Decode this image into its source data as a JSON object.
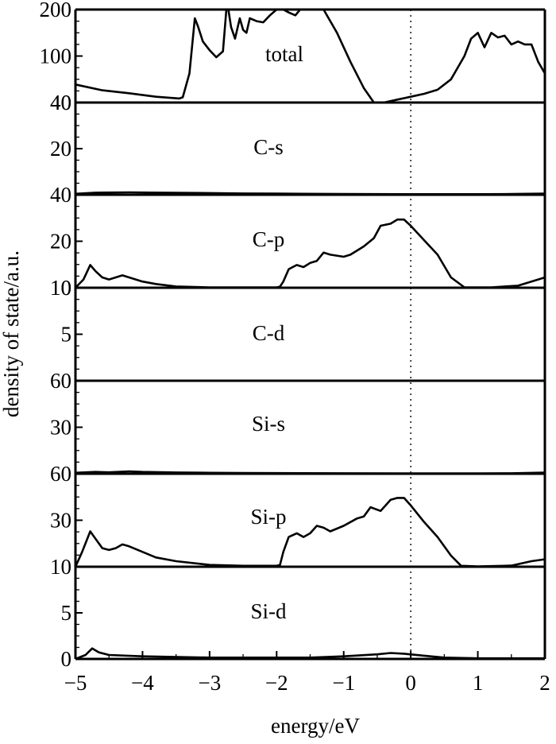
{
  "chart_data": {
    "type": "line",
    "xlabel": "energy/eV",
    "ylabel": "density of state/a.u.",
    "xlim": [
      -5,
      2
    ],
    "x_ticks": [
      "−5",
      "−4",
      "−3",
      "−2",
      "−1",
      "0",
      "1",
      "2"
    ],
    "fermi_level": 0,
    "grid": false,
    "panels": [
      {
        "name": "total",
        "y_ticks": [
          "200",
          "100",
          "40"
        ],
        "points": [
          [
            -5,
            71
          ],
          [
            -4.6,
            61
          ],
          [
            -4.2,
            56
          ],
          [
            -3.8,
            50
          ],
          [
            -3.45,
            47
          ],
          [
            -3.4,
            49
          ],
          [
            -3.3,
            90
          ],
          [
            -3.22,
            185
          ],
          [
            -3.17,
            170
          ],
          [
            -3.1,
            145
          ],
          [
            -3.0,
            130
          ],
          [
            -2.9,
            118
          ],
          [
            -2.8,
            128
          ],
          [
            -2.75,
            200
          ],
          [
            -2.72,
            200
          ],
          [
            -2.68,
            170
          ],
          [
            -2.62,
            150
          ],
          [
            -2.55,
            185
          ],
          [
            -2.5,
            165
          ],
          [
            -2.45,
            160
          ],
          [
            -2.4,
            185
          ],
          [
            -2.3,
            180
          ],
          [
            -2.2,
            178
          ],
          [
            -2.1,
            190
          ],
          [
            -2.0,
            200
          ],
          [
            -1.9,
            200
          ],
          [
            -1.82,
            195
          ],
          [
            -1.72,
            190
          ],
          [
            -1.65,
            200
          ],
          [
            -1.3,
            200
          ],
          [
            -1.1,
            160
          ],
          [
            -0.9,
            110
          ],
          [
            -0.7,
            65
          ],
          [
            -0.55,
            40
          ],
          [
            -0.4,
            40
          ],
          [
            -0.2,
            45
          ],
          [
            0,
            50
          ],
          [
            0.2,
            55
          ],
          [
            0.4,
            62
          ],
          [
            0.6,
            80
          ],
          [
            0.8,
            120
          ],
          [
            0.9,
            150
          ],
          [
            1.0,
            160
          ],
          [
            1.1,
            135
          ],
          [
            1.2,
            160
          ],
          [
            1.3,
            152
          ],
          [
            1.4,
            155
          ],
          [
            1.5,
            140
          ],
          [
            1.6,
            145
          ],
          [
            1.7,
            140
          ],
          [
            1.8,
            140
          ],
          [
            1.9,
            110
          ],
          [
            2.0,
            90
          ]
        ]
      },
      {
        "name": "C-s",
        "y_ticks": [
          "40",
          "20"
        ],
        "points": [
          [
            -5,
            0.5
          ],
          [
            -4.7,
            1.1
          ],
          [
            -4.2,
            1.3
          ],
          [
            -3.7,
            1.1
          ],
          [
            -3.0,
            0.9
          ],
          [
            -2.5,
            0.7
          ],
          [
            -2,
            0.6
          ],
          [
            -1,
            0.4
          ],
          [
            0,
            0.3
          ],
          [
            0.5,
            0.3
          ],
          [
            1,
            0.3
          ],
          [
            1.5,
            0.4
          ],
          [
            2,
            0.6
          ]
        ]
      },
      {
        "name": "C-p",
        "y_ticks": [
          "40",
          "20",
          "10"
        ],
        "points": [
          [
            -5,
            0
          ],
          [
            -4.88,
            4
          ],
          [
            -4.78,
            11
          ],
          [
            -4.7,
            8
          ],
          [
            -4.6,
            5
          ],
          [
            -4.5,
            4
          ],
          [
            -4.4,
            5
          ],
          [
            -4.3,
            6
          ],
          [
            -4.2,
            5
          ],
          [
            -4.0,
            3
          ],
          [
            -3.8,
            1.8
          ],
          [
            -3.5,
            0.6
          ],
          [
            -3.0,
            0.2
          ],
          [
            -2.5,
            0.2
          ],
          [
            -2.0,
            0.2
          ],
          [
            -1.95,
            0.5
          ],
          [
            -1.9,
            3
          ],
          [
            -1.82,
            9
          ],
          [
            -1.7,
            11
          ],
          [
            -1.6,
            10
          ],
          [
            -1.5,
            12
          ],
          [
            -1.4,
            13
          ],
          [
            -1.3,
            17
          ],
          [
            -1.2,
            16
          ],
          [
            -1.0,
            15
          ],
          [
            -0.9,
            16
          ],
          [
            -0.7,
            20
          ],
          [
            -0.55,
            24
          ],
          [
            -0.45,
            30
          ],
          [
            -0.3,
            31
          ],
          [
            -0.2,
            33
          ],
          [
            -0.1,
            33
          ],
          [
            0,
            30
          ],
          [
            0.2,
            23
          ],
          [
            0.4,
            16
          ],
          [
            0.6,
            5
          ],
          [
            0.8,
            0.2
          ],
          [
            1.2,
            0.2
          ],
          [
            1.6,
            1
          ],
          [
            1.9,
            4
          ],
          [
            2.0,
            5
          ]
        ]
      },
      {
        "name": "C-d",
        "y_ticks": [
          "10",
          "5"
        ],
        "points": [
          [
            -5,
            0.02
          ],
          [
            -2,
            0.02
          ],
          [
            0,
            0.02
          ],
          [
            2,
            0.02
          ]
        ]
      },
      {
        "name": "Si-s",
        "y_ticks": [
          "60",
          "30"
        ],
        "points": [
          [
            -5,
            1
          ],
          [
            -4.7,
            2
          ],
          [
            -4.5,
            1.5
          ],
          [
            -4.2,
            2.6
          ],
          [
            -4.0,
            2
          ],
          [
            -3.5,
            1.4
          ],
          [
            -3.0,
            1
          ],
          [
            -2.5,
            0.8
          ],
          [
            -2.0,
            0.7
          ],
          [
            -1.0,
            0.5
          ],
          [
            0,
            0.4
          ],
          [
            1,
            0.4
          ],
          [
            1.5,
            0.5
          ],
          [
            2,
            1.2
          ]
        ]
      },
      {
        "name": "Si-p",
        "y_ticks": [
          "60",
          "30",
          "10"
        ],
        "points": [
          [
            -5,
            0
          ],
          [
            -4.9,
            8
          ],
          [
            -4.78,
            19
          ],
          [
            -4.7,
            15
          ],
          [
            -4.6,
            10
          ],
          [
            -4.5,
            9
          ],
          [
            -4.4,
            10
          ],
          [
            -4.3,
            12
          ],
          [
            -4.2,
            11
          ],
          [
            -4.0,
            8
          ],
          [
            -3.8,
            5
          ],
          [
            -3.5,
            3
          ],
          [
            -3.0,
            1
          ],
          [
            -2.5,
            0.5
          ],
          [
            -2.0,
            0.5
          ],
          [
            -1.95,
            1
          ],
          [
            -1.9,
            8
          ],
          [
            -1.82,
            16
          ],
          [
            -1.7,
            18
          ],
          [
            -1.6,
            16
          ],
          [
            -1.5,
            18
          ],
          [
            -1.4,
            22
          ],
          [
            -1.3,
            21
          ],
          [
            -1.2,
            19
          ],
          [
            -1.0,
            22
          ],
          [
            -0.8,
            26
          ],
          [
            -0.7,
            27
          ],
          [
            -0.6,
            32
          ],
          [
            -0.45,
            30
          ],
          [
            -0.3,
            36
          ],
          [
            -0.2,
            37
          ],
          [
            -0.1,
            37
          ],
          [
            0,
            33
          ],
          [
            0.2,
            24
          ],
          [
            0.4,
            16
          ],
          [
            0.6,
            6
          ],
          [
            0.75,
            0.5
          ],
          [
            1.0,
            0.2
          ],
          [
            1.5,
            0.6
          ],
          [
            1.8,
            3
          ],
          [
            2.0,
            4
          ]
        ]
      },
      {
        "name": "Si-d",
        "y_ticks": [
          "5",
          "0"
        ],
        "points": [
          [
            -5,
            0
          ],
          [
            -4.85,
            0.3
          ],
          [
            -4.75,
            0.8
          ],
          [
            -4.65,
            0.5
          ],
          [
            -4.5,
            0.3
          ],
          [
            -4.0,
            0.2
          ],
          [
            -3.0,
            0.1
          ],
          [
            -2.0,
            0.1
          ],
          [
            -1.5,
            0.1
          ],
          [
            -1.0,
            0.2
          ],
          [
            -0.5,
            0.35
          ],
          [
            -0.3,
            0.45
          ],
          [
            -0.1,
            0.4
          ],
          [
            0.2,
            0.25
          ],
          [
            0.5,
            0.1
          ],
          [
            1.0,
            0.05
          ],
          [
            2.0,
            0.05
          ]
        ]
      }
    ]
  }
}
